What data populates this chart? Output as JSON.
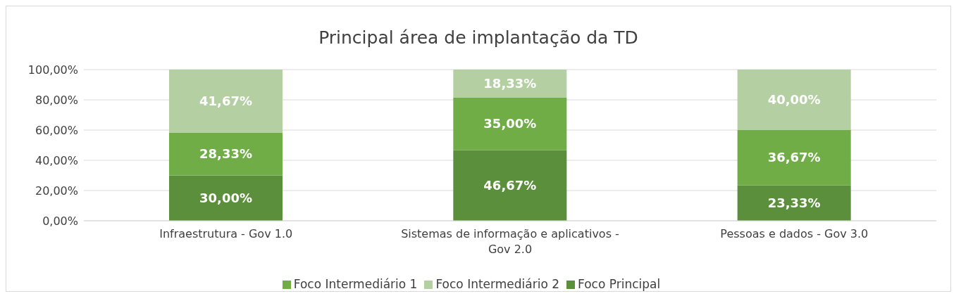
{
  "chart_data": {
    "type": "bar",
    "title": "Principal área de implantação da TD",
    "stacked": true,
    "categories": [
      "Infraestrutura - Gov 1.0",
      "Sistemas de informação e aplicativos - Gov 2.0",
      "Pessoas e dados - Gov 3.0"
    ],
    "series": [
      {
        "name": "Foco Principal",
        "color": "#5b8f3b",
        "values": [
          30.0,
          46.67,
          23.33
        ],
        "value_labels": [
          "30,00%",
          "46,67%",
          "23,33%"
        ]
      },
      {
        "name": "Foco Intermediário 1",
        "color": "#70ad47",
        "values": [
          28.33,
          35.0,
          36.67
        ],
        "value_labels": [
          "28,33%",
          "35,00%",
          "36,67%"
        ]
      },
      {
        "name": "Foco Intermediário 2",
        "color": "#b4cfa1",
        "values": [
          41.67,
          18.33,
          40.0
        ],
        "value_labels": [
          "41,67%",
          "18,33%",
          "40,00%"
        ]
      }
    ],
    "ylim": [
      0,
      100
    ],
    "yticks": [
      {
        "value": 0,
        "label": "0,00%"
      },
      {
        "value": 20,
        "label": "20,00%"
      },
      {
        "value": 40,
        "label": "40,00%"
      },
      {
        "value": 60,
        "label": "60,00%"
      },
      {
        "value": 80,
        "label": "80,00%"
      },
      {
        "value": 100,
        "label": "100,00%"
      }
    ],
    "grid": "y",
    "legend": "bottom"
  }
}
